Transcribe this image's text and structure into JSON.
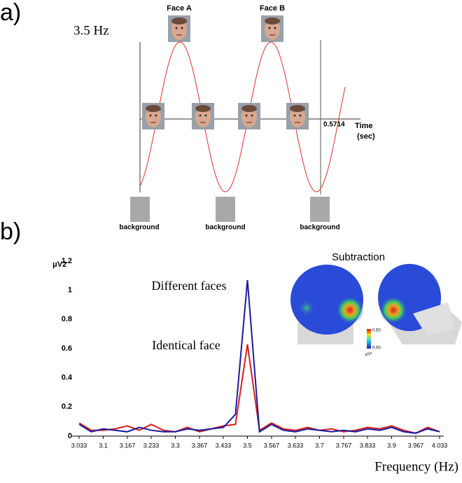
{
  "panel_a": {
    "label": "a)",
    "frequency": "3.5 Hz",
    "faces": [
      "Face A",
      "Face B"
    ],
    "time_mark": "0.5714",
    "axis_label": [
      "Time",
      "(sec)"
    ],
    "backgrounds": [
      "background",
      "background",
      "background"
    ]
  },
  "panel_b_label": "b)",
  "chart_data": {
    "type": "line",
    "y_label": "μV2",
    "x_label": "Frequency (Hz)",
    "inset_title": "Subtraction",
    "colorbar": [
      "0.50",
      "0.00",
      "μV²"
    ],
    "x": [
      3.0333,
      3.0667,
      3.1,
      3.1333,
      3.1667,
      3.2,
      3.2333,
      3.2667,
      3.3,
      3.3333,
      3.3667,
      3.4,
      3.4333,
      3.4667,
      3.5,
      3.5333,
      3.5667,
      3.6,
      3.6333,
      3.6667,
      3.7,
      3.7333,
      3.7667,
      3.8,
      3.8333,
      3.8667,
      3.9,
      3.9333,
      3.9667,
      4.0,
      4.0333
    ],
    "series": [
      {
        "name": "Identical face",
        "color": "#d42020",
        "values": [
          0.09,
          0.04,
          0.04,
          0.05,
          0.07,
          0.04,
          0.08,
          0.04,
          0.03,
          0.06,
          0.03,
          0.05,
          0.07,
          0.08,
          0.63,
          0.04,
          0.09,
          0.05,
          0.04,
          0.06,
          0.04,
          0.05,
          0.03,
          0.04,
          0.06,
          0.05,
          0.07,
          0.04,
          0.02,
          0.06,
          0.03
        ]
      },
      {
        "name": "Different faces",
        "color": "#1a1aa0",
        "values": [
          0.08,
          0.03,
          0.05,
          0.04,
          0.03,
          0.06,
          0.04,
          0.03,
          0.03,
          0.05,
          0.04,
          0.05,
          0.06,
          0.15,
          1.07,
          0.03,
          0.08,
          0.04,
          0.03,
          0.05,
          0.04,
          0.03,
          0.04,
          0.03,
          0.05,
          0.04,
          0.06,
          0.03,
          0.02,
          0.05,
          0.03
        ]
      }
    ],
    "xlim": [
      3.033,
      4.033
    ],
    "ylim": [
      0,
      1.2
    ],
    "xticks": [
      3.033,
      3.1,
      3.167,
      3.233,
      3.3,
      3.367,
      3.433,
      3.5,
      3.567,
      3.633,
      3.7,
      3.767,
      3.833,
      3.9,
      3.967,
      4.033
    ],
    "yticks": [
      0,
      0.2,
      0.4,
      0.6,
      0.8,
      1,
      1.2
    ]
  }
}
